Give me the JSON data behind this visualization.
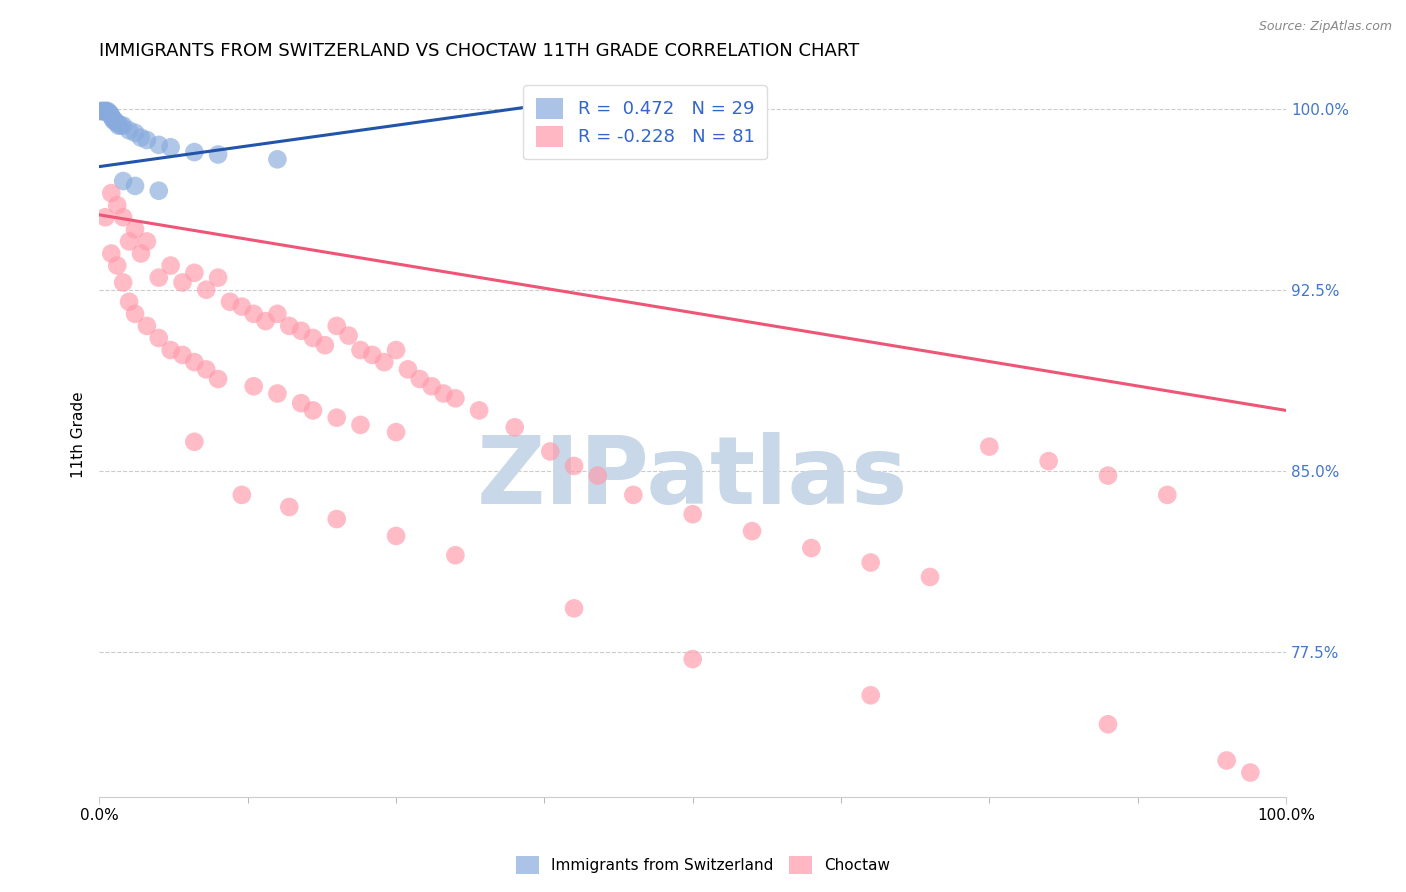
{
  "title": "IMMIGRANTS FROM SWITZERLAND VS CHOCTAW 11TH GRADE CORRELATION CHART",
  "source": "Source: ZipAtlas.com",
  "ylabel": "11th Grade",
  "watermark": "ZIPatlas",
  "xlim": [
    0.0,
    1.0
  ],
  "ylim": [
    0.715,
    1.015
  ],
  "yticks": [
    0.775,
    0.85,
    0.925,
    1.0
  ],
  "ytick_labels": [
    "77.5%",
    "85.0%",
    "92.5%",
    "100.0%"
  ],
  "blue_color": "#88AADD",
  "pink_color": "#FF99AA",
  "blue_line_color": "#2255AA",
  "pink_line_color": "#EE5577",
  "blue_scatter_x": [
    0.001,
    0.002,
    0.003,
    0.004,
    0.005,
    0.006,
    0.007,
    0.008,
    0.009,
    0.01,
    0.011,
    0.012,
    0.013,
    0.015,
    0.016,
    0.018,
    0.02,
    0.025,
    0.03,
    0.035,
    0.04,
    0.05,
    0.06,
    0.08,
    0.1,
    0.15,
    0.02,
    0.03,
    0.05
  ],
  "blue_scatter_y": [
    0.999,
    0.999,
    0.999,
    0.999,
    0.999,
    0.999,
    0.999,
    0.998,
    0.998,
    0.997,
    0.996,
    0.995,
    0.995,
    0.994,
    0.993,
    0.993,
    0.993,
    0.991,
    0.99,
    0.988,
    0.987,
    0.985,
    0.984,
    0.982,
    0.981,
    0.979,
    0.97,
    0.968,
    0.966
  ],
  "pink_scatter_x": [
    0.005,
    0.01,
    0.01,
    0.015,
    0.015,
    0.02,
    0.02,
    0.025,
    0.025,
    0.03,
    0.03,
    0.035,
    0.04,
    0.04,
    0.05,
    0.05,
    0.06,
    0.06,
    0.07,
    0.07,
    0.08,
    0.08,
    0.09,
    0.09,
    0.1,
    0.1,
    0.11,
    0.12,
    0.13,
    0.13,
    0.14,
    0.15,
    0.15,
    0.16,
    0.17,
    0.17,
    0.18,
    0.18,
    0.19,
    0.2,
    0.2,
    0.21,
    0.22,
    0.22,
    0.23,
    0.24,
    0.25,
    0.25,
    0.26,
    0.27,
    0.28,
    0.29,
    0.3,
    0.32,
    0.35,
    0.38,
    0.4,
    0.42,
    0.45,
    0.5,
    0.55,
    0.6,
    0.65,
    0.7,
    0.75,
    0.8,
    0.85,
    0.9,
    0.95,
    0.97,
    0.08,
    0.12,
    0.16,
    0.2,
    0.25,
    0.3,
    0.4,
    0.5,
    0.65,
    0.85
  ],
  "pink_scatter_y": [
    0.955,
    0.965,
    0.94,
    0.96,
    0.935,
    0.955,
    0.928,
    0.945,
    0.92,
    0.95,
    0.915,
    0.94,
    0.945,
    0.91,
    0.93,
    0.905,
    0.935,
    0.9,
    0.928,
    0.898,
    0.932,
    0.895,
    0.925,
    0.892,
    0.93,
    0.888,
    0.92,
    0.918,
    0.915,
    0.885,
    0.912,
    0.915,
    0.882,
    0.91,
    0.908,
    0.878,
    0.905,
    0.875,
    0.902,
    0.91,
    0.872,
    0.906,
    0.9,
    0.869,
    0.898,
    0.895,
    0.9,
    0.866,
    0.892,
    0.888,
    0.885,
    0.882,
    0.88,
    0.875,
    0.868,
    0.858,
    0.852,
    0.848,
    0.84,
    0.832,
    0.825,
    0.818,
    0.812,
    0.806,
    0.86,
    0.854,
    0.848,
    0.84,
    0.73,
    0.725,
    0.862,
    0.84,
    0.835,
    0.83,
    0.823,
    0.815,
    0.793,
    0.772,
    0.757,
    0.745
  ],
  "blue_trend_x": [
    0.0,
    0.38
  ],
  "blue_trend_y": [
    0.976,
    1.002
  ],
  "pink_trend_x": [
    0.0,
    1.0
  ],
  "pink_trend_y": [
    0.956,
    0.875
  ],
  "background_color": "#ffffff",
  "grid_color": "#cccccc",
  "title_fontsize": 13,
  "axis_label_fontsize": 11,
  "tick_fontsize": 11,
  "watermark_color": "#C8D8E8",
  "watermark_fontsize": 68,
  "scatter_size": 180
}
